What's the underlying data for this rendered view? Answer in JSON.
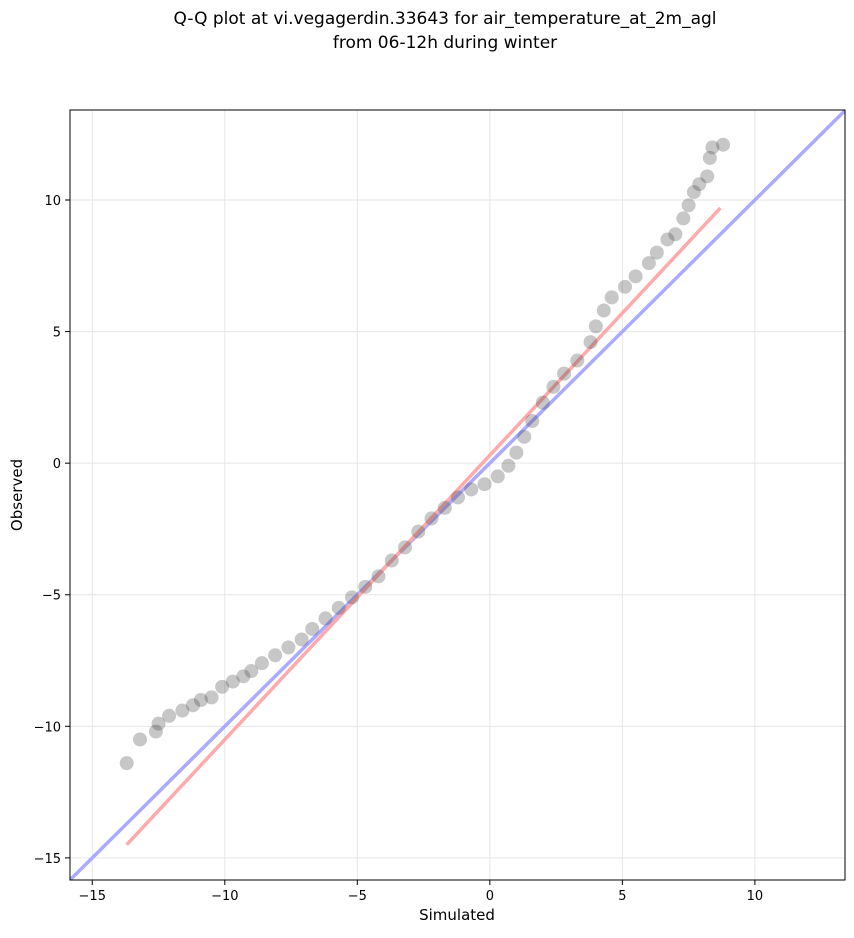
{
  "chart_data": {
    "type": "scatter",
    "title": [
      "Q-Q plot at vi.vegagerdin.33643 for air_temperature_at_2m_agl",
      "from 06-12h during winter"
    ],
    "x_label": "Simulated",
    "y_label": "Observed",
    "xlim": [
      -15.84,
      13.4
    ],
    "ylim": [
      -15.84,
      13.42
    ],
    "xticks": [
      {
        "value": -15,
        "label": "−15"
      },
      {
        "value": -10,
        "label": "−10"
      },
      {
        "value": -5,
        "label": "−5"
      },
      0,
      5,
      10
    ],
    "yticks": [
      {
        "value": -15,
        "label": "−15"
      },
      {
        "value": -10,
        "label": "−10"
      },
      {
        "value": -5,
        "label": "−5"
      },
      0,
      5,
      10
    ],
    "grid": true,
    "series": [
      {
        "color": "#444444",
        "x": [
          -13.7,
          -13.2,
          -12.6,
          -12.5,
          -12.1,
          -11.6,
          -11.2,
          -10.9,
          -10.5,
          -10.1,
          -9.7,
          -9.3,
          -9.0,
          -8.6,
          -8.1,
          -7.6,
          -7.1,
          -6.7,
          -6.2,
          -5.7,
          -5.2,
          -4.7,
          -4.2,
          -3.7,
          -3.2,
          -2.7,
          -2.2,
          -1.7,
          -1.2,
          -0.7,
          -0.2,
          0.3,
          0.7,
          1.0,
          1.3,
          1.6,
          2.0,
          2.4,
          2.8,
          3.3,
          3.8,
          4.0,
          4.3,
          4.6,
          5.1,
          5.5,
          6.0,
          6.3,
          6.7,
          7.0,
          7.3,
          7.5,
          7.7,
          7.9,
          8.2,
          8.3,
          8.4,
          8.8
        ],
        "values": [
          -11.4,
          -10.5,
          -10.2,
          -9.9,
          -9.6,
          -9.4,
          -9.2,
          -9.0,
          -8.9,
          -8.5,
          -8.3,
          -8.1,
          -7.9,
          -7.6,
          -7.3,
          -7.0,
          -6.7,
          -6.3,
          -5.9,
          -5.5,
          -5.1,
          -4.7,
          -4.3,
          -3.7,
          -3.2,
          -2.6,
          -2.1,
          -1.7,
          -1.3,
          -1.0,
          -0.8,
          -0.5,
          -0.1,
          0.4,
          1.0,
          1.6,
          2.3,
          2.9,
          3.4,
          3.9,
          4.6,
          5.2,
          5.8,
          6.3,
          6.7,
          7.1,
          7.6,
          8.0,
          8.5,
          8.7,
          9.3,
          9.8,
          10.3,
          10.6,
          10.9,
          11.6,
          12.0,
          12.1
        ]
      }
    ],
    "lines": [
      {
        "color": "#aaaaff",
        "x": [
          -15.84,
          13.4
        ],
        "values": [
          -15.84,
          13.4
        ]
      },
      {
        "color": "#ffaaaa",
        "x": [
          -13.7,
          8.7
        ],
        "values": [
          -14.5,
          9.7
        ]
      }
    ]
  }
}
